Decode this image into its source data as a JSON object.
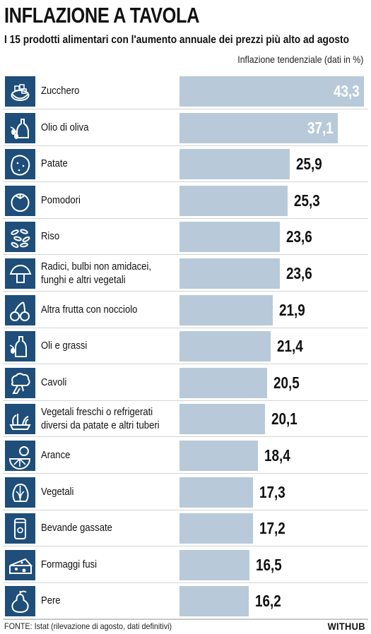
{
  "header": {
    "title": "INFLAZIONE A TAVOLA",
    "subtitle": "I 15 prodotti alimentari con l'aumento annuale dei prezzi più alto ad agosto",
    "unit_note": "Inflazione tendenziale (dati in %)"
  },
  "footer": {
    "source": "FONTE: Istat (rilevazione di agosto, dati definitivi)",
    "brand": "WITHUB"
  },
  "colors": {
    "bar": "#b8cad9",
    "icon_background": "#1e4e79",
    "value_inside": "#ffffff",
    "value_outside": "#111111"
  },
  "chart_data": {
    "type": "bar",
    "orientation": "horizontal",
    "title": "INFLAZIONE A TAVOLA",
    "subtitle": "I 15 prodotti alimentari con l'aumento annuale dei prezzi più alto ad agosto",
    "value_label": "Inflazione tendenziale (dati in %)",
    "xlim": [
      0,
      43.3
    ],
    "grid": false,
    "legend": "none",
    "categories": [
      "Zucchero",
      "Olio di oliva",
      "Patate",
      "Pomodori",
      "Riso",
      "Radici, bulbi non amidacei,\nfunghi e altri vegetali",
      "Altra frutta con nocciolo",
      "Oli e grassi",
      "Cavoli",
      "Vegetali freschi o refrigerati\ndiversi da patate e altri tuberi",
      "Arance",
      "Vegetali",
      "Bevande gassate",
      "Formaggi fusi",
      "Pere"
    ],
    "values": [
      43.3,
      37.1,
      25.9,
      25.3,
      23.6,
      23.6,
      21.9,
      21.4,
      20.5,
      20.1,
      18.4,
      17.3,
      17.2,
      16.5,
      16.2
    ],
    "value_labels": [
      "43,3",
      "37,1",
      "25,9",
      "25,3",
      "23,6",
      "23,6",
      "21,9",
      "21,4",
      "20,5",
      "20,1",
      "18,4",
      "17,3",
      "17,2",
      "16,5",
      "16,2"
    ],
    "icons": [
      "sugar-bowl-icon",
      "olive-oil-icon",
      "potato-icon",
      "tomato-icon",
      "rice-icon",
      "mushroom-icon",
      "cherries-icon",
      "oil-bottle-icon",
      "broccoli-icon",
      "vegetables-icon",
      "orange-icon",
      "cabbage-icon",
      "soda-can-icon",
      "cheese-icon",
      "pear-icon"
    ]
  }
}
